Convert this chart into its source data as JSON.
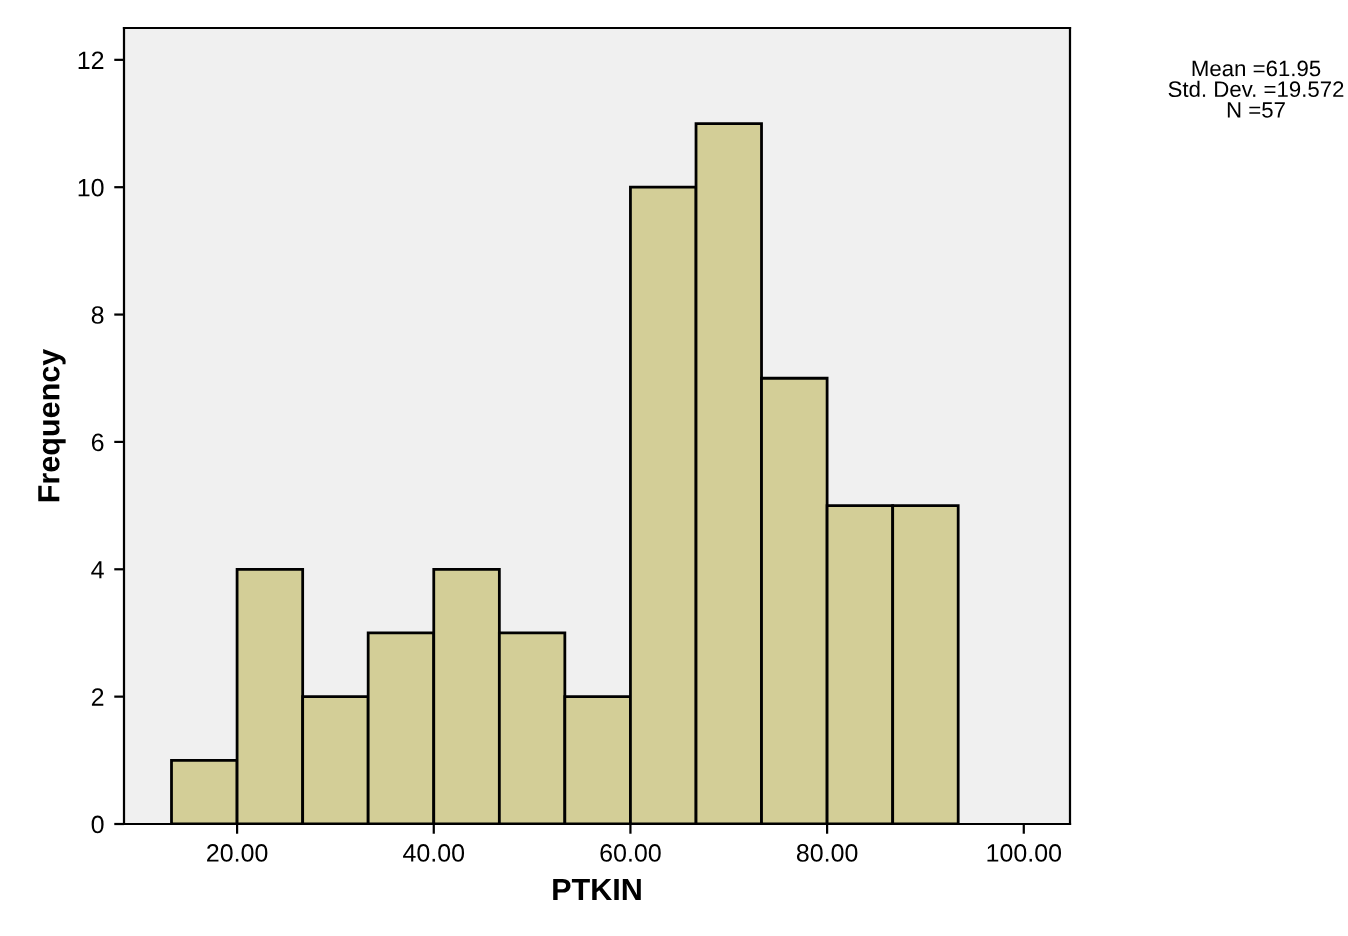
{
  "chart_data": {
    "type": "histogram",
    "xlabel": "PTKIN",
    "ylabel": "Frequency",
    "bins": [
      13.33,
      20,
      26.67,
      33.33,
      40,
      46.67,
      53.33,
      60,
      66.67,
      73.33,
      80,
      86.67,
      93.33
    ],
    "values": [
      1,
      4,
      2,
      3,
      4,
      3,
      2,
      10,
      11,
      7,
      5,
      5
    ],
    "color": "#d3ce97",
    "xlim": [
      8.5,
      104.7
    ],
    "xticks": [
      {
        "value": 20,
        "label": "20.00"
      },
      {
        "value": 40,
        "label": "40.00"
      },
      {
        "value": 60,
        "label": "60.00"
      },
      {
        "value": 80,
        "label": "80.00"
      },
      {
        "value": 100,
        "label": "100.00"
      }
    ],
    "ylim": [
      0,
      12.5
    ],
    "yticks": [
      0,
      2,
      4,
      6,
      8,
      10,
      12
    ],
    "grid": false,
    "annotations": [
      "Mean =61.95\nStd. Dev. =19.572\nN =57"
    ]
  }
}
